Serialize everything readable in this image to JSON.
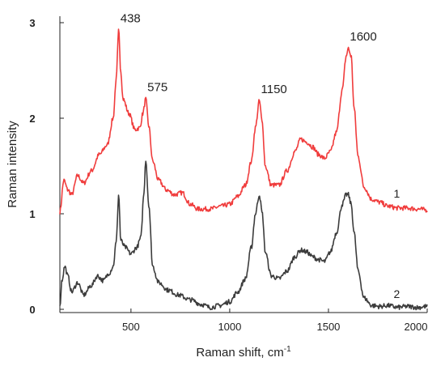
{
  "chart_data": {
    "type": "line",
    "title": "",
    "xlabel": "Raman shift, cm",
    "xlabel_superscript": "-1",
    "ylabel": "Raman intensity",
    "xlim": [
      140,
      2000
    ],
    "ylim": [
      0,
      3
    ],
    "xticks": [
      500,
      1000,
      1500,
      2000
    ],
    "yticks": [
      0,
      1,
      2,
      3
    ],
    "grid": false,
    "legend": "none",
    "series": [
      {
        "label": "1",
        "color": "#f03c3c",
        "points": [
          [
            140,
            1.02
          ],
          [
            160,
            1.35
          ],
          [
            180,
            1.25
          ],
          [
            200,
            1.2
          ],
          [
            230,
            1.4
          ],
          [
            260,
            1.32
          ],
          [
            300,
            1.45
          ],
          [
            340,
            1.62
          ],
          [
            380,
            1.72
          ],
          [
            410,
            2.0
          ],
          [
            425,
            2.4
          ],
          [
            438,
            2.92
          ],
          [
            448,
            2.5
          ],
          [
            460,
            2.2
          ],
          [
            490,
            2.05
          ],
          [
            520,
            1.88
          ],
          [
            545,
            1.9
          ],
          [
            560,
            2.05
          ],
          [
            575,
            2.2
          ],
          [
            590,
            1.92
          ],
          [
            610,
            1.55
          ],
          [
            640,
            1.35
          ],
          [
            680,
            1.25
          ],
          [
            720,
            1.2
          ],
          [
            760,
            1.22
          ],
          [
            800,
            1.1
          ],
          [
            840,
            1.05
          ],
          [
            900,
            1.05
          ],
          [
            960,
            1.08
          ],
          [
            1000,
            1.1
          ],
          [
            1040,
            1.18
          ],
          [
            1080,
            1.3
          ],
          [
            1110,
            1.55
          ],
          [
            1130,
            1.9
          ],
          [
            1150,
            2.18
          ],
          [
            1165,
            1.95
          ],
          [
            1180,
            1.5
          ],
          [
            1210,
            1.3
          ],
          [
            1250,
            1.3
          ],
          [
            1290,
            1.45
          ],
          [
            1330,
            1.65
          ],
          [
            1360,
            1.78
          ],
          [
            1390,
            1.75
          ],
          [
            1420,
            1.7
          ],
          [
            1450,
            1.62
          ],
          [
            1480,
            1.58
          ],
          [
            1510,
            1.65
          ],
          [
            1540,
            1.85
          ],
          [
            1570,
            2.3
          ],
          [
            1590,
            2.65
          ],
          [
            1600,
            2.73
          ],
          [
            1615,
            2.65
          ],
          [
            1630,
            2.1
          ],
          [
            1650,
            1.6
          ],
          [
            1680,
            1.28
          ],
          [
            1720,
            1.15
          ],
          [
            1760,
            1.12
          ],
          [
            1800,
            1.08
          ],
          [
            1850,
            1.06
          ],
          [
            1900,
            1.06
          ],
          [
            1950,
            1.05
          ],
          [
            2000,
            1.04
          ]
        ]
      },
      {
        "label": "2",
        "color": "#3c3c3c",
        "points": [
          [
            140,
            0.02
          ],
          [
            150,
            0.3
          ],
          [
            165,
            0.45
          ],
          [
            180,
            0.35
          ],
          [
            200,
            0.18
          ],
          [
            230,
            0.28
          ],
          [
            260,
            0.15
          ],
          [
            300,
            0.25
          ],
          [
            330,
            0.35
          ],
          [
            360,
            0.3
          ],
          [
            390,
            0.38
          ],
          [
            410,
            0.45
          ],
          [
            425,
            0.7
          ],
          [
            438,
            1.2
          ],
          [
            448,
            0.72
          ],
          [
            470,
            0.65
          ],
          [
            500,
            0.58
          ],
          [
            530,
            0.65
          ],
          [
            550,
            0.75
          ],
          [
            565,
            1.2
          ],
          [
            575,
            1.57
          ],
          [
            590,
            1.1
          ],
          [
            610,
            0.45
          ],
          [
            640,
            0.28
          ],
          [
            690,
            0.2
          ],
          [
            740,
            0.15
          ],
          [
            800,
            0.1
          ],
          [
            860,
            0.05
          ],
          [
            900,
            0.02
          ],
          [
            950,
            0.04
          ],
          [
            1000,
            0.08
          ],
          [
            1040,
            0.18
          ],
          [
            1080,
            0.32
          ],
          [
            1110,
            0.65
          ],
          [
            1130,
            1.0
          ],
          [
            1150,
            1.2
          ],
          [
            1165,
            1.0
          ],
          [
            1180,
            0.6
          ],
          [
            1210,
            0.35
          ],
          [
            1250,
            0.32
          ],
          [
            1290,
            0.4
          ],
          [
            1330,
            0.55
          ],
          [
            1360,
            0.62
          ],
          [
            1390,
            0.6
          ],
          [
            1420,
            0.55
          ],
          [
            1450,
            0.52
          ],
          [
            1480,
            0.5
          ],
          [
            1510,
            0.6
          ],
          [
            1540,
            0.8
          ],
          [
            1570,
            1.1
          ],
          [
            1590,
            1.2
          ],
          [
            1600,
            1.2
          ],
          [
            1615,
            1.1
          ],
          [
            1630,
            0.8
          ],
          [
            1650,
            0.4
          ],
          [
            1680,
            0.12
          ],
          [
            1720,
            0.04
          ],
          [
            1760,
            0.03
          ],
          [
            1800,
            0.04
          ],
          [
            1850,
            0.02
          ],
          [
            1900,
            0.03
          ],
          [
            1950,
            0.02
          ],
          [
            2000,
            0.03
          ]
        ]
      }
    ],
    "annotations": [
      {
        "text": "438",
        "x": 438,
        "y": 2.92
      },
      {
        "text": "575",
        "x": 575,
        "y": 2.2
      },
      {
        "text": "1150",
        "x": 1150,
        "y": 2.18
      },
      {
        "text": "1600",
        "x": 1600,
        "y": 2.73
      }
    ],
    "series_labels": [
      {
        "text": "1",
        "x": 1830,
        "y": 1.17
      },
      {
        "text": "2",
        "x": 1830,
        "y": 0.12
      }
    ]
  }
}
